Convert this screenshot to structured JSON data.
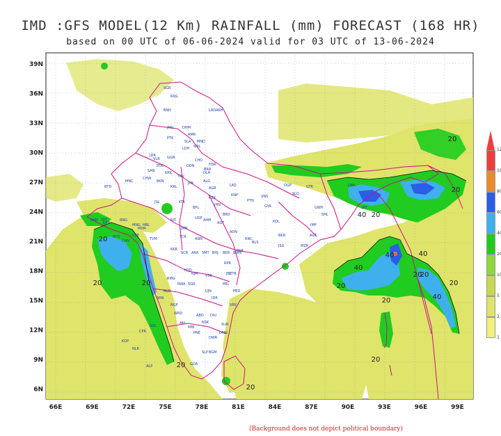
{
  "header": {
    "title": "IMD :GFS MODEL(12 Km) RAINFALL (mm) FORECAST (168 HR)",
    "subtitle": "based on 00 UTC of 06-06-2024 valid for 03 UTC of 13-06-2024"
  },
  "map": {
    "lon_range": [
      65,
      100
    ],
    "lat_range": [
      5,
      40
    ],
    "lon_ticks": [
      "66E",
      "69E",
      "72E",
      "75E",
      "78E",
      "81E",
      "84E",
      "87E",
      "90E",
      "93E",
      "96E",
      "99E"
    ],
    "lat_ticks": [
      "39N",
      "36N",
      "33N",
      "30N",
      "27N",
      "24N",
      "21N",
      "18N",
      "15N",
      "12N",
      "9N",
      "6N"
    ],
    "contour_labels": [
      "20",
      "20",
      "40",
      "20",
      "20",
      "20",
      "20",
      "40",
      "20",
      "40",
      "20",
      "20",
      "20",
      "40",
      "40",
      "20",
      "20",
      "20",
      "20"
    ],
    "station_labels": [
      "SGR",
      "KRG",
      "LADAKH",
      "BNH",
      "JMU",
      "DHM",
      "AMR",
      "PTK",
      "SLA",
      "MND",
      "SML",
      "LDH",
      "JDR",
      "GGN",
      "CHD",
      "DDN",
      "BRR",
      "HSR",
      "SAN",
      "DLH",
      "BKN",
      "ALG",
      "AGR",
      "JPR",
      "KRL",
      "JSL",
      "KTA",
      "BPL",
      "JHN",
      "LKO",
      "KNP",
      "VNS",
      "PTN",
      "GYA",
      "DGP",
      "GTK",
      "SLG",
      "DBR",
      "JRT",
      "GWH",
      "SHL",
      "IMP",
      "AGT",
      "MZR",
      "KOL",
      "BKR",
      "BLS",
      "RNC",
      "JSG",
      "BSR",
      "CTK",
      "PBL",
      "VSK",
      "RJM",
      "HYD",
      "RMG",
      "BLD",
      "SRN",
      "NGP",
      "WRD",
      "AKL",
      "MBI",
      "PNE",
      "SLP",
      "GOA",
      "BGM",
      "DWR",
      "HBL",
      "MNG",
      "BNG",
      "MYS",
      "CHN",
      "CBE",
      "MDR",
      "TVM",
      "KKR",
      "TCR",
      "ANN",
      "AGT",
      "ADN",
      "UDP",
      "AHM",
      "BRD",
      "RJT",
      "JMN",
      "PBD",
      "VRV",
      "DIU",
      "SUR",
      "DMN",
      "NSK",
      "ABD",
      "IDR",
      "UJN",
      "RPR",
      "JBP",
      "SGR",
      "RWA",
      "SDL",
      "CPR",
      "ALP",
      "KDP",
      "NLR",
      "TPT",
      "VLR",
      "PDC",
      "KRK",
      "TRV",
      "CHW",
      "MNC",
      "BTD",
      "DMP",
      "KRN",
      "KZK",
      "SCR",
      "ARA",
      "SMT",
      "BHJ",
      "BKR",
      "BWN"
    ],
    "colors": {
      "lt20": "#dfe46a",
      "c20_40": "#1fcc1f",
      "c40_60": "#3fb0ee",
      "c60_80": "#2a5de8",
      "c80": "#f08a28",
      "c100": "#f03e3e",
      "border": "#cc1188",
      "frame": "#222222"
    }
  },
  "colorbar": {
    "levels": [
      "1",
      "2.5",
      "5",
      "10",
      "20",
      "40",
      "60",
      "80",
      "100",
      "120"
    ]
  },
  "footer": {
    "note": "(Background does not depict political boundary)"
  }
}
